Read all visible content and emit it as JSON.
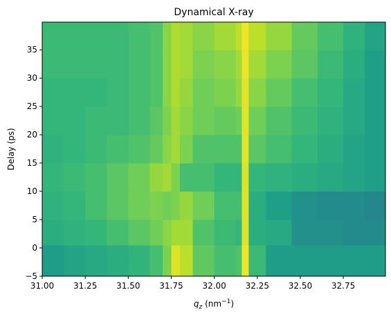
{
  "chart_data": {
    "type": "heatmap",
    "title": "Dynamical X-ray",
    "x_label": {
      "symbol": "q",
      "subscript": "z",
      "unit": "(nm",
      "superscript": "−1",
      "close": ")"
    },
    "y_label": "Delay (ps)",
    "colormap": "viridis",
    "xlim": [
      31.0,
      32.995
    ],
    "ylim": [
      -5,
      39.9
    ],
    "xticks": [
      {
        "value": 31.0,
        "label": "31.00"
      },
      {
        "value": 31.25,
        "label": "31.25"
      },
      {
        "value": 31.5,
        "label": "31.50"
      },
      {
        "value": 31.75,
        "label": "31.75"
      },
      {
        "value": 32.0,
        "label": "32.00"
      },
      {
        "value": 32.25,
        "label": "32.25"
      },
      {
        "value": 32.5,
        "label": "32.50"
      },
      {
        "value": 32.75,
        "label": "32.75"
      }
    ],
    "yticks": [
      {
        "value": -5,
        "label": "−5"
      },
      0,
      5,
      10,
      15,
      20,
      25,
      30,
      35
    ],
    "x_edges": [
      31.0,
      31.125,
      31.25,
      31.375,
      31.5,
      31.625,
      31.7,
      31.75,
      31.8,
      31.875,
      32.0,
      32.125,
      32.16,
      32.2,
      32.3,
      32.45,
      32.6,
      32.75,
      32.875,
      32.995
    ],
    "y_edges": [
      -5,
      0.5,
      5,
      10,
      15,
      20,
      25,
      30,
      35,
      39.9
    ],
    "z": [
      [
        0.55,
        0.58,
        0.6,
        0.62,
        0.65,
        0.7,
        0.8,
        0.95,
        0.9,
        0.75,
        0.7,
        0.72,
        0.98,
        0.68,
        0.55,
        0.55,
        0.55,
        0.55,
        0.55
      ],
      [
        0.62,
        0.64,
        0.66,
        0.7,
        0.74,
        0.78,
        0.82,
        0.86,
        0.86,
        0.72,
        0.68,
        0.66,
        0.95,
        0.62,
        0.6,
        0.5,
        0.5,
        0.48,
        0.48
      ],
      [
        0.64,
        0.66,
        0.7,
        0.74,
        0.78,
        0.8,
        0.78,
        0.8,
        0.84,
        0.78,
        0.7,
        0.7,
        0.95,
        0.62,
        0.56,
        0.5,
        0.48,
        0.48,
        0.46
      ],
      [
        0.66,
        0.68,
        0.7,
        0.74,
        0.78,
        0.84,
        0.86,
        0.8,
        0.7,
        0.7,
        0.66,
        0.66,
        0.95,
        0.66,
        0.64,
        0.62,
        0.6,
        0.58,
        0.56
      ],
      [
        0.64,
        0.66,
        0.68,
        0.7,
        0.72,
        0.76,
        0.82,
        0.86,
        0.8,
        0.72,
        0.72,
        0.72,
        0.96,
        0.74,
        0.7,
        0.66,
        0.62,
        0.58,
        0.56
      ],
      [
        0.66,
        0.66,
        0.68,
        0.68,
        0.7,
        0.74,
        0.8,
        0.86,
        0.82,
        0.78,
        0.76,
        0.78,
        0.96,
        0.78,
        0.72,
        0.68,
        0.64,
        0.6,
        0.56
      ],
      [
        0.66,
        0.66,
        0.66,
        0.68,
        0.7,
        0.72,
        0.82,
        0.88,
        0.84,
        0.78,
        0.8,
        0.84,
        0.96,
        0.82,
        0.76,
        0.7,
        0.66,
        0.6,
        0.56
      ],
      [
        0.68,
        0.68,
        0.68,
        0.68,
        0.7,
        0.72,
        0.82,
        0.88,
        0.86,
        0.8,
        0.82,
        0.86,
        0.97,
        0.86,
        0.8,
        0.74,
        0.68,
        0.62,
        0.56
      ],
      [
        0.68,
        0.68,
        0.68,
        0.68,
        0.7,
        0.72,
        0.82,
        0.88,
        0.86,
        0.82,
        0.86,
        0.9,
        0.98,
        0.9,
        0.84,
        0.76,
        0.7,
        0.64,
        0.58
      ]
    ]
  }
}
